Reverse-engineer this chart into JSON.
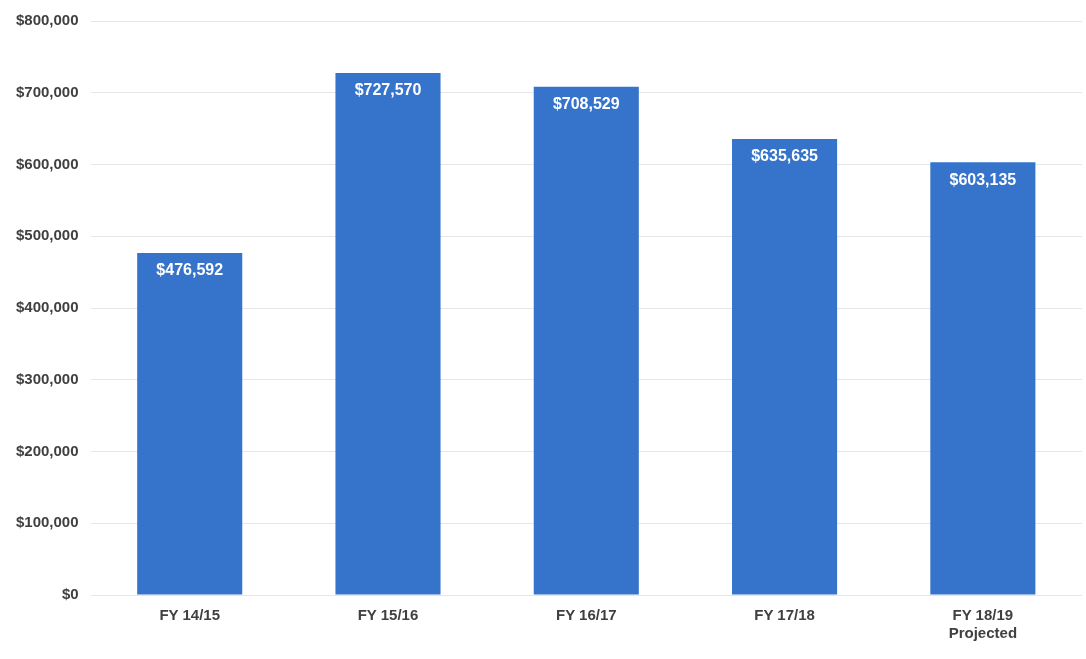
{
  "chart_data": {
    "type": "bar",
    "categories": [
      "FY 14/15",
      "FY 15/16",
      "FY 16/17",
      "FY 17/18",
      "FY 18/19\nProjected"
    ],
    "values": [
      476592,
      727570,
      708529,
      635635,
      603135
    ],
    "value_labels": [
      "$476,592",
      "$727,570",
      "$708,529",
      "$635,635",
      "$603,135"
    ],
    "color": "#3674cc",
    "ylim": [
      0,
      800000
    ],
    "yticks": [
      {
        "value": 0,
        "label": "$0"
      },
      {
        "value": 100000,
        "label": "$100,000"
      },
      {
        "value": 200000,
        "label": "$200,000"
      },
      {
        "value": 300000,
        "label": "$300,000"
      },
      {
        "value": 400000,
        "label": "$400,000"
      },
      {
        "value": 500000,
        "label": "$500,000"
      },
      {
        "value": 600000,
        "label": "$600,000"
      },
      {
        "value": 700000,
        "label": "$700,000"
      },
      {
        "value": 800000,
        "label": "$800,000"
      }
    ],
    "grid": "y"
  }
}
